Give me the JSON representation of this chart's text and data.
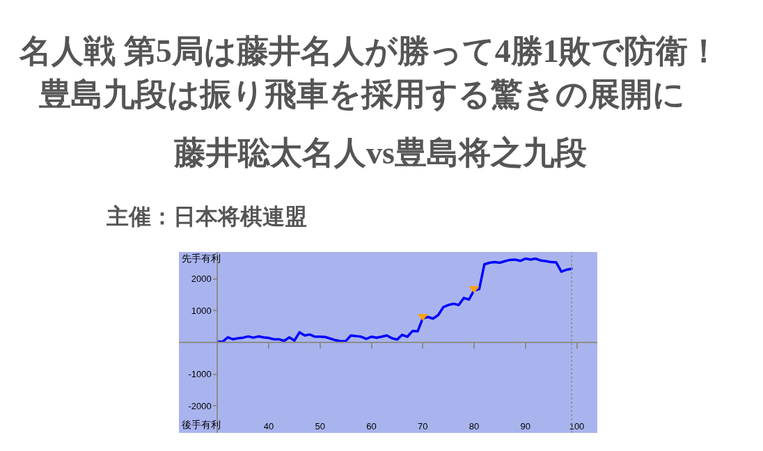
{
  "chart_data": {
    "type": "line",
    "title": "名人戦 第5局は藤井名人が勝って4勝1敗で防衛！",
    "subtitle": "豊島九段は振り飛車を採用する驚きの展開に",
    "annotations": [
      "藤井聡太名人vs豊島将之九段",
      "主催：日本将棋連盟",
      "先手有利",
      "後手有利"
    ],
    "series": [
      {
        "type": "line",
        "color": "#0000ff",
        "marker": "none",
        "x": [
          30,
          31,
          32,
          33,
          34,
          35,
          36,
          37,
          38,
          39,
          40,
          41,
          42,
          43,
          44,
          45,
          46,
          47,
          48,
          49,
          50,
          51,
          52,
          53,
          54,
          55,
          56,
          57,
          58,
          59,
          60,
          61,
          62,
          63,
          64,
          65,
          66,
          67,
          68,
          69,
          70,
          71,
          72,
          73,
          74,
          75,
          76,
          77,
          78,
          79,
          80,
          81,
          82,
          83,
          84,
          85,
          86,
          87,
          88,
          89,
          90,
          91,
          92,
          93,
          94,
          95,
          96,
          97,
          98,
          99
        ],
        "values": [
          20,
          20,
          160,
          100,
          130,
          150,
          190,
          150,
          190,
          160,
          140,
          100,
          100,
          50,
          160,
          60,
          320,
          220,
          250,
          180,
          180,
          170,
          120,
          70,
          40,
          40,
          220,
          200,
          180,
          110,
          180,
          150,
          180,
          220,
          130,
          90,
          240,
          180,
          360,
          350,
          760,
          800,
          750,
          860,
          1110,
          1180,
          1220,
          1180,
          1400,
          1350,
          1640,
          1680,
          2460,
          2510,
          2530,
          2510,
          2560,
          2600,
          2610,
          2570,
          2640,
          2610,
          2640,
          2580,
          2560,
          2530,
          2520,
          2230,
          2290,
          2320
        ]
      },
      {
        "type": "scatter",
        "color": "#ffa200",
        "marker": "triangle",
        "x": [
          70,
          80
        ],
        "values": [
          820,
          1700
        ]
      }
    ],
    "ref_lines": [
      {
        "axis": "x",
        "value": 99,
        "color": "#8c8c8c",
        "line_style": "dotted"
      }
    ],
    "xlim": [
      22.5,
      104
    ],
    "xticks": [
      40,
      50,
      60,
      70,
      80,
      90,
      100
    ],
    "ylim": [
      -2850,
      2850
    ],
    "yticks": [
      -2000,
      -1000,
      1000,
      2000
    ]
  }
}
